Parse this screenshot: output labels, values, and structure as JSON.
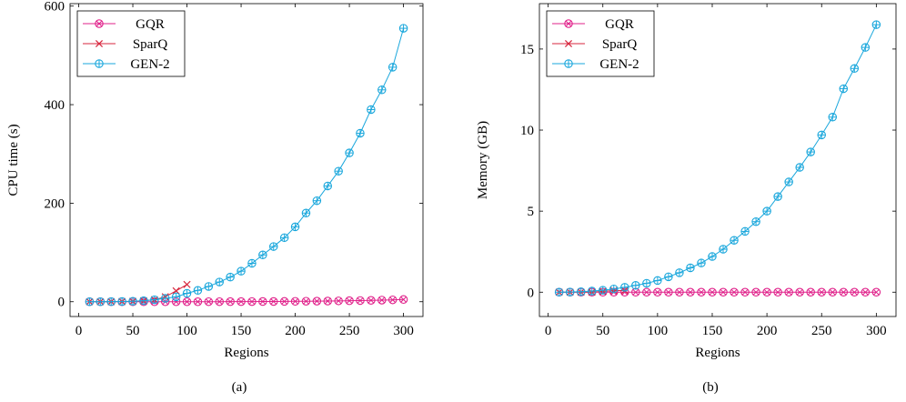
{
  "chart_data": [
    {
      "type": "line",
      "panel_label": "(a)",
      "xlabel": "Regions",
      "ylabel": "CPU time (s)",
      "xlim": [
        -8,
        318
      ],
      "ylim": [
        -30,
        605
      ],
      "xticks": [
        0,
        50,
        100,
        150,
        200,
        250,
        300
      ],
      "yticks": [
        0,
        200,
        400,
        600
      ],
      "legend_position": "top-left",
      "grid": false,
      "series": [
        {
          "name": "GQR",
          "marker": "circle-x",
          "color": "#e0218a",
          "x": [
            10,
            20,
            30,
            40,
            50,
            60,
            70,
            80,
            90,
            100,
            110,
            120,
            130,
            140,
            150,
            160,
            170,
            180,
            190,
            200,
            210,
            220,
            230,
            240,
            250,
            260,
            270,
            280,
            290,
            300
          ],
          "y": [
            0,
            0,
            0,
            0,
            0,
            0,
            0,
            0,
            0,
            0,
            0,
            0.1,
            0.1,
            0.2,
            0.2,
            0.3,
            0.4,
            0.5,
            0.6,
            0.8,
            1.0,
            1.2,
            1.4,
            1.7,
            2.0,
            2.4,
            2.8,
            3.3,
            3.8,
            4.5
          ]
        },
        {
          "name": "SparQ",
          "marker": "x",
          "color": "#d7263d",
          "x": [
            10,
            20,
            30,
            40,
            50,
            60,
            70,
            80,
            90,
            100
          ],
          "y": [
            0,
            0,
            0.1,
            0.3,
            0.8,
            2,
            4,
            10,
            22,
            35
          ]
        },
        {
          "name": "GEN-2",
          "marker": "circle-plus",
          "color": "#1aa7dc",
          "x": [
            10,
            20,
            30,
            40,
            50,
            60,
            70,
            80,
            90,
            100,
            110,
            120,
            130,
            140,
            150,
            160,
            170,
            180,
            190,
            200,
            210,
            220,
            230,
            240,
            250,
            260,
            270,
            280,
            290,
            300
          ],
          "y": [
            0,
            0,
            0.2,
            0.5,
            1,
            2,
            4,
            7,
            10,
            17,
            23,
            31,
            40,
            50,
            62,
            78,
            95,
            112,
            130,
            152,
            180,
            205,
            235,
            265,
            302,
            342,
            390,
            430,
            476,
            555
          ]
        }
      ]
    },
    {
      "type": "line",
      "panel_label": "(b)",
      "xlabel": "Regions",
      "ylabel": "Memory (GB)",
      "xlim": [
        -8,
        318
      ],
      "ylim": [
        -1.5,
        17.8
      ],
      "xticks": [
        0,
        50,
        100,
        150,
        200,
        250,
        300
      ],
      "yticks": [
        0,
        5,
        10,
        15
      ],
      "legend_position": "top-left",
      "grid": false,
      "series": [
        {
          "name": "GQR",
          "marker": "circle-x",
          "color": "#e0218a",
          "x": [
            10,
            20,
            30,
            40,
            50,
            60,
            70,
            80,
            90,
            100,
            110,
            120,
            130,
            140,
            150,
            160,
            170,
            180,
            190,
            200,
            210,
            220,
            230,
            240,
            250,
            260,
            270,
            280,
            290,
            300
          ],
          "y": [
            0,
            0,
            0,
            0,
            0,
            0,
            0,
            0,
            0,
            0,
            0,
            0,
            0,
            0,
            0,
            0,
            0,
            0,
            0,
            0,
            0,
            0,
            0,
            0,
            0,
            0,
            0,
            0,
            0,
            0
          ]
        },
        {
          "name": "SparQ",
          "marker": "x",
          "color": "#d7263d",
          "x": [
            10,
            20,
            30,
            40,
            50,
            60,
            70
          ],
          "y": [
            0,
            0,
            0,
            0,
            0.05,
            0.1,
            0.1
          ]
        },
        {
          "name": "GEN-2",
          "marker": "circle-plus",
          "color": "#1aa7dc",
          "x": [
            10,
            20,
            30,
            40,
            50,
            60,
            70,
            80,
            90,
            100,
            110,
            120,
            130,
            140,
            150,
            160,
            170,
            180,
            190,
            200,
            210,
            220,
            230,
            240,
            250,
            260,
            270,
            280,
            290,
            300
          ],
          "y": [
            0,
            0.01,
            0.03,
            0.07,
            0.12,
            0.2,
            0.3,
            0.42,
            0.55,
            0.72,
            0.95,
            1.2,
            1.5,
            1.8,
            2.2,
            2.65,
            3.2,
            3.75,
            4.35,
            5.0,
            5.9,
            6.8,
            7.7,
            8.65,
            9.7,
            10.8,
            12.55,
            13.8,
            15.1,
            16.5
          ]
        }
      ]
    }
  ]
}
